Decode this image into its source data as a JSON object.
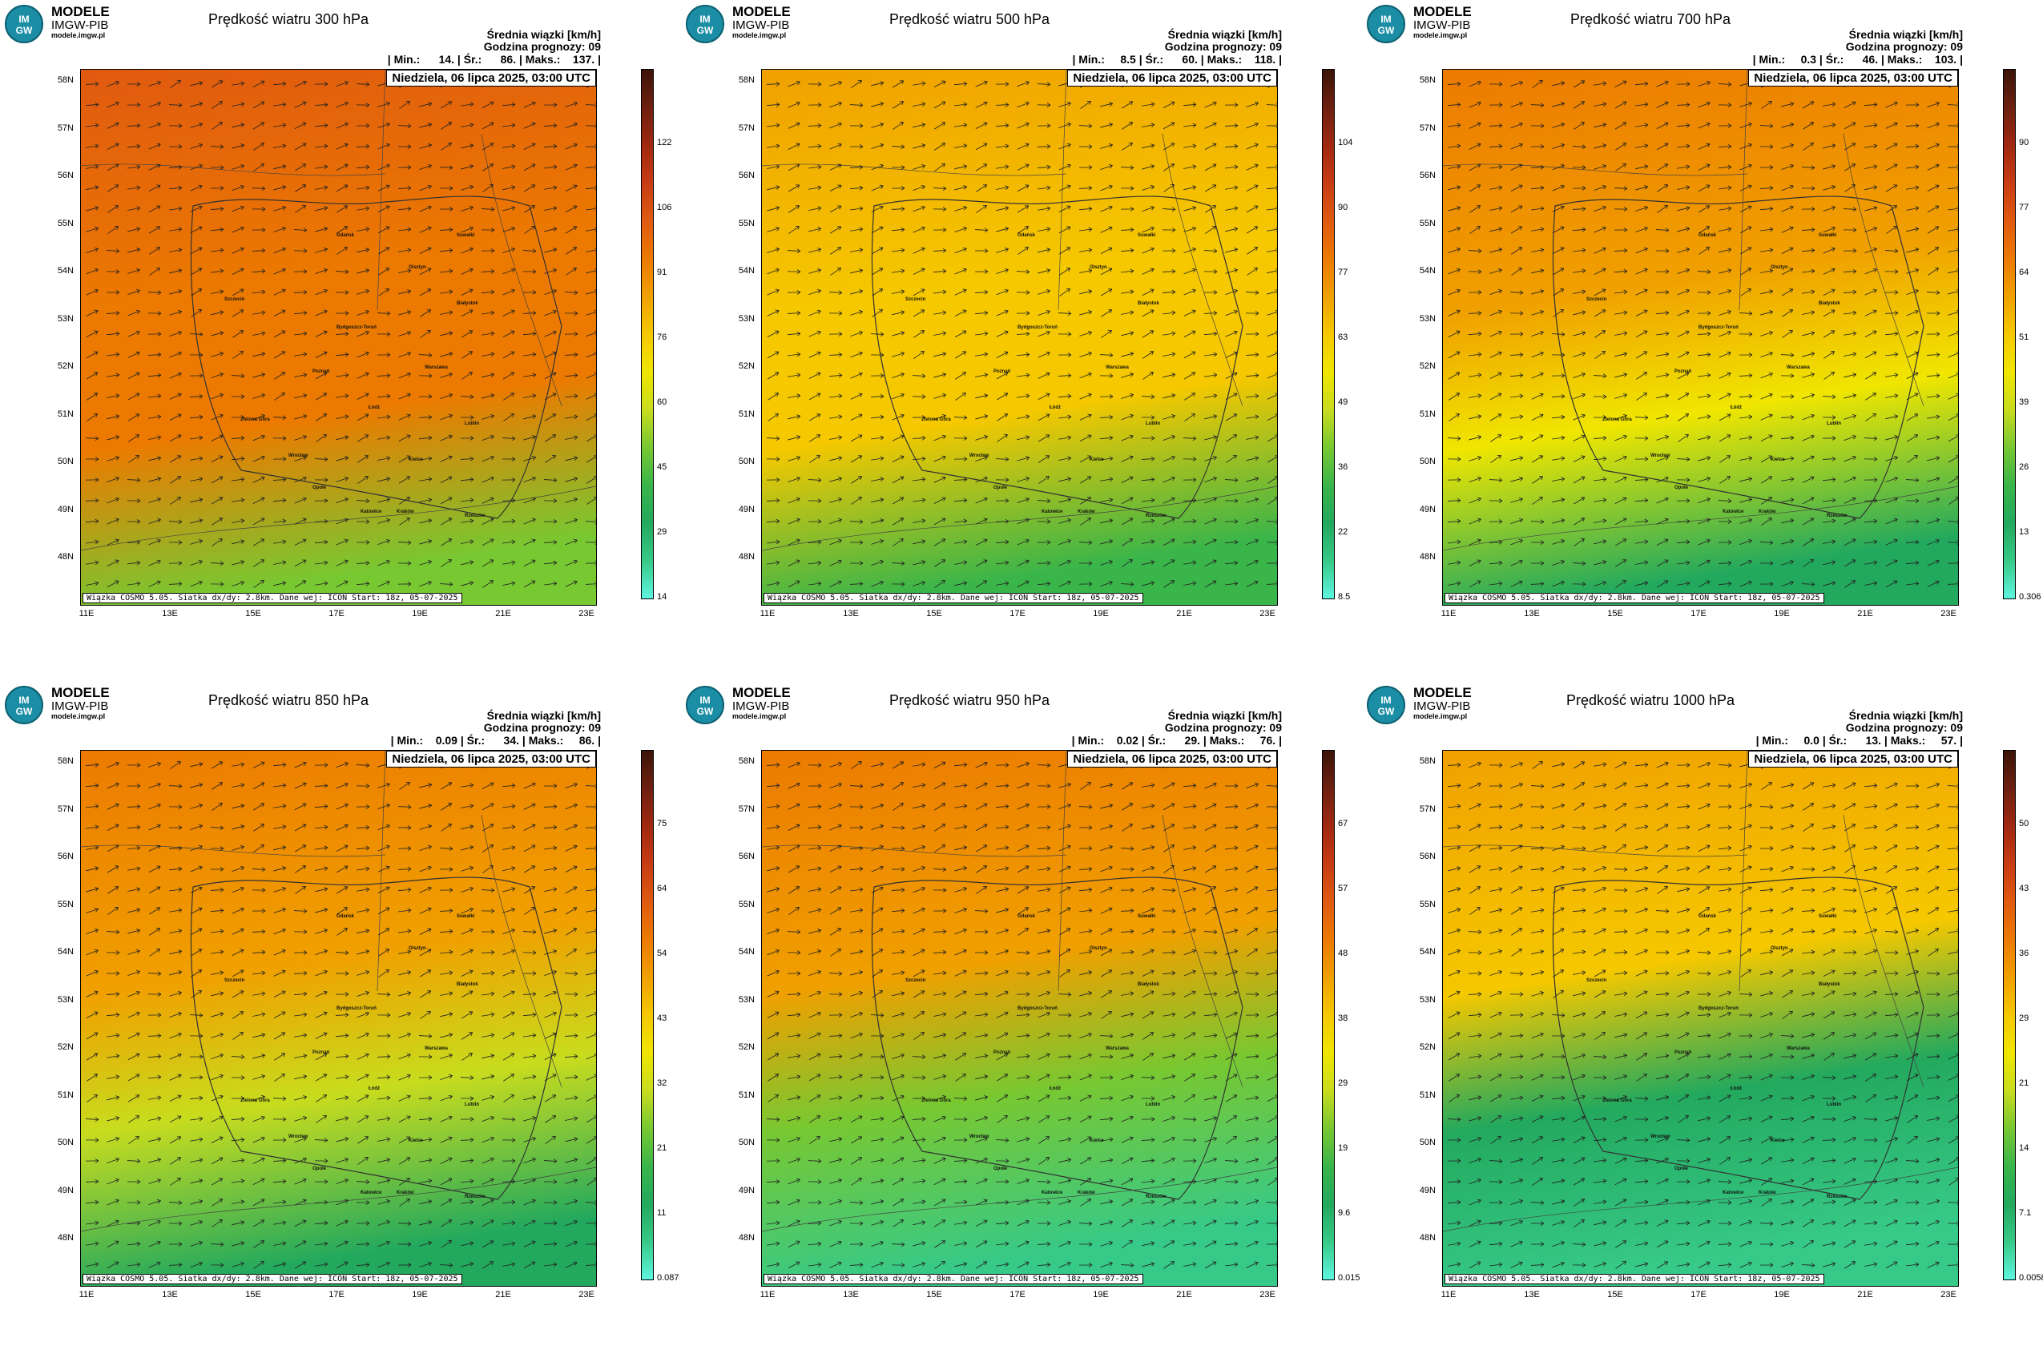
{
  "logo": {
    "line1": "MODELE",
    "line2": "IMGW-PIB",
    "line3": "modele.imgw.pl"
  },
  "common": {
    "desc_line1": "Średnia wiązki [km/h]",
    "desc_line2": "Godzina prognozy: 09",
    "date": "Niedziela, 06 lipca 2025, 03:00 UTC",
    "info": "Wiązka COSMO 5.05. Siatka dx/dy: 2.8km. Dane wej: ICON Start: 18z, 05-07-2025",
    "lat_labels": [
      "58N",
      "57N",
      "56N",
      "55N",
      "54N",
      "53N",
      "52N",
      "51N",
      "50N",
      "49N",
      "48N"
    ],
    "lon_labels": [
      "11E",
      "13E",
      "15E",
      "17E",
      "19E",
      "21E",
      "23E"
    ],
    "cities": [
      "Gdańsk",
      "Suwałki",
      "Olsztyn",
      "Szczecin",
      "Białystok",
      "Bydgoszcz-Toruń",
      "Poznań",
      "Warszawa",
      "Zielona Góra",
      "Łódź",
      "Lublin",
      "Wrocław",
      "Kielce",
      "Opole",
      "Katowice",
      "Kraków",
      "Rzeszów"
    ]
  },
  "panels": [
    {
      "title": "Prędkość wiatru 300 hPa",
      "stats": "| Min.:      14. | Śr.:      86. | Maks.:    137. |",
      "cbar_labels": [
        "122",
        "106",
        "91",
        "76",
        "60",
        "45",
        "29",
        "14"
      ]
    },
    {
      "title": "Prędkość wiatru 500 hPa",
      "stats": "| Min.:     8.5 | Śr.:      60. | Maks.:    118. |",
      "cbar_labels": [
        "104",
        "90",
        "77",
        "63",
        "49",
        "36",
        "22",
        "8.5"
      ]
    },
    {
      "title": "Prędkość wiatru 700 hPa",
      "stats": "| Min.:     0.3 | Śr.:      46. | Maks.:    103. |",
      "cbar_labels": [
        "90",
        "77",
        "64",
        "51",
        "39",
        "26",
        "13",
        "0.306"
      ]
    },
    {
      "title": "Prędkość wiatru 850 hPa",
      "stats": "| Min.:    0.09 | Śr.:      34. | Maks.:     86. |",
      "cbar_labels": [
        "75",
        "64",
        "54",
        "43",
        "32",
        "21",
        "11",
        "0.087"
      ]
    },
    {
      "title": "Prędkość wiatru 950 hPa",
      "stats": "| Min.:    0.02 | Śr.:      29. | Maks.:     76. |",
      "cbar_labels": [
        "67",
        "57",
        "48",
        "38",
        "29",
        "19",
        "9.6",
        "0.015"
      ]
    },
    {
      "title": "Prędkość wiatru 1000 hPa",
      "stats": "| Min.:     0.0 | Śr.:      13. | Maks.:     57. |",
      "cbar_labels": [
        "50",
        "43",
        "36",
        "29",
        "21",
        "14",
        "7.1",
        "0.0058"
      ]
    }
  ],
  "colors": {
    "scale": [
      "#5ef5e0",
      "#37c987",
      "#23a95e",
      "#3ab54a",
      "#78c832",
      "#c8dc1e",
      "#f0e600",
      "#f5c800",
      "#f0a000",
      "#ec7a00",
      "#e05a10",
      "#c83c14",
      "#a02810",
      "#6e2010",
      "#3c1408"
    ]
  }
}
